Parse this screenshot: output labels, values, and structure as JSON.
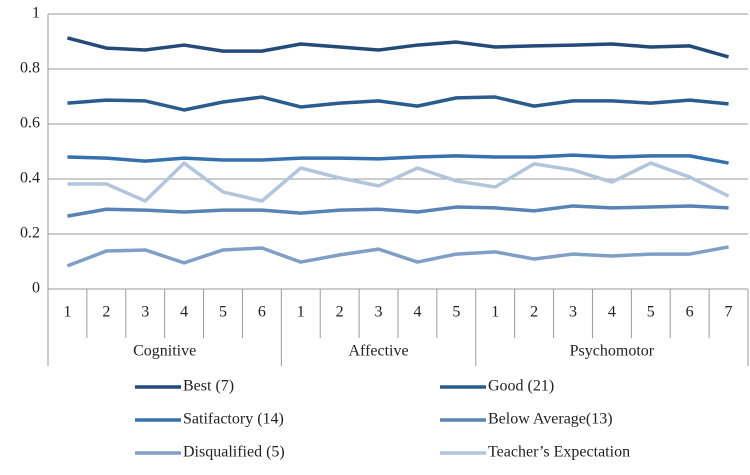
{
  "chart_data": {
    "type": "line",
    "groups": [
      {
        "name": "Cognitive",
        "categories": [
          "1",
          "2",
          "3",
          "4",
          "5",
          "6"
        ]
      },
      {
        "name": "Affective",
        "categories": [
          "1",
          "2",
          "3",
          "4",
          "5"
        ]
      },
      {
        "name": "Psychomotor",
        "categories": [
          "1",
          "2",
          "3",
          "4",
          "5",
          "6",
          "7"
        ]
      }
    ],
    "series": [
      {
        "name": "Best (7)",
        "color": "#234a78",
        "values": [
          0.913,
          0.876,
          0.869,
          0.887,
          0.865,
          0.865,
          0.891,
          0.88,
          0.869,
          0.887,
          0.898,
          0.88,
          0.884,
          0.887,
          0.891,
          0.88,
          0.884,
          0.844
        ]
      },
      {
        "name": "Good (21)",
        "color": "#2b5b8f",
        "values": [
          0.676,
          0.687,
          0.684,
          0.651,
          0.68,
          0.698,
          0.662,
          0.676,
          0.684,
          0.665,
          0.695,
          0.698,
          0.665,
          0.684,
          0.684,
          0.676,
          0.687,
          0.673
        ]
      },
      {
        "name": "Satifactory (14)",
        "color": "#3670ad",
        "values": [
          0.48,
          0.476,
          0.465,
          0.476,
          0.469,
          0.469,
          0.476,
          0.476,
          0.473,
          0.48,
          0.484,
          0.48,
          0.48,
          0.487,
          0.48,
          0.484,
          0.484,
          0.458
        ]
      },
      {
        "name": "Below Average(13)",
        "color": "#5883b4",
        "values": [
          0.265,
          0.29,
          0.287,
          0.28,
          0.287,
          0.287,
          0.276,
          0.287,
          0.29,
          0.28,
          0.298,
          0.295,
          0.284,
          0.302,
          0.295,
          0.298,
          0.302,
          0.295
        ]
      },
      {
        "name": "Disqualified (5)",
        "color": "#809fc6",
        "values": [
          0.084,
          0.138,
          0.142,
          0.095,
          0.142,
          0.149,
          0.098,
          0.124,
          0.145,
          0.098,
          0.127,
          0.135,
          0.109,
          0.127,
          0.12,
          0.127,
          0.127,
          0.153
        ]
      },
      {
        "name": "Teacher’s Expectation",
        "color": "#b2c5dc",
        "values": [
          0.382,
          0.382,
          0.32,
          0.458,
          0.353,
          0.32,
          0.44,
          0.404,
          0.375,
          0.44,
          0.393,
          0.371,
          0.455,
          0.433,
          0.389,
          0.458,
          0.407,
          0.338
        ]
      }
    ],
    "ylim": [
      0,
      1
    ],
    "yticks": [
      0,
      0.2,
      0.4,
      0.6,
      0.8,
      1
    ],
    "grid": true
  }
}
